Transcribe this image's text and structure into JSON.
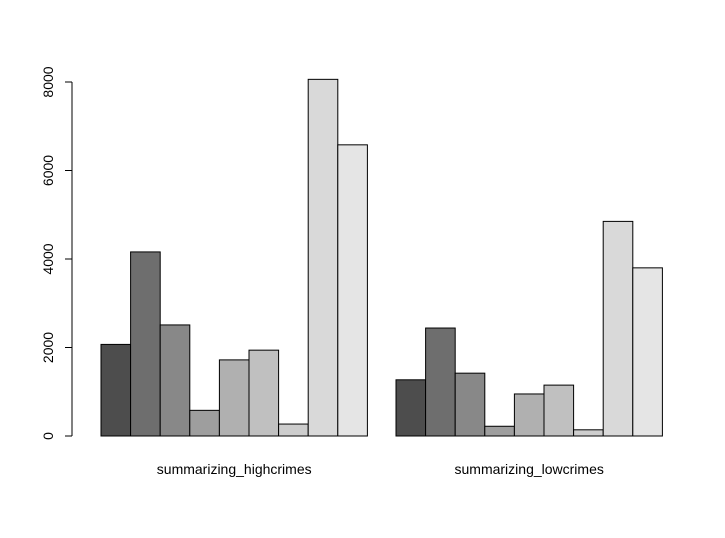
{
  "chart_data": {
    "type": "bar",
    "grouping": "grouped",
    "categories": [
      "summarizing_highcrimes",
      "summarizing_lowcrimes"
    ],
    "series": [
      {
        "color": "#4d4d4d",
        "values": [
          2070,
          1270
        ]
      },
      {
        "color": "#6e6e6e",
        "values": [
          4160,
          2440
        ]
      },
      {
        "color": "#888888",
        "values": [
          2510,
          1420
        ]
      },
      {
        "color": "#9e9e9e",
        "values": [
          580,
          220
        ]
      },
      {
        "color": "#b0b0b0",
        "values": [
          1720,
          950
        ]
      },
      {
        "color": "#c0c0c0",
        "values": [
          1940,
          1150
        ]
      },
      {
        "color": "#cdcdcd",
        "values": [
          270,
          140
        ]
      },
      {
        "color": "#d9d9d9",
        "values": [
          8060,
          4850
        ]
      },
      {
        "color": "#e5e5e5",
        "values": [
          6580,
          3800
        ]
      }
    ],
    "yticks": [
      "0",
      "2000",
      "4000",
      "6000",
      "8000"
    ],
    "ylim": [
      0,
      8060
    ],
    "xlabel": "",
    "ylabel": "",
    "title": "",
    "grid": false,
    "legend": false
  }
}
